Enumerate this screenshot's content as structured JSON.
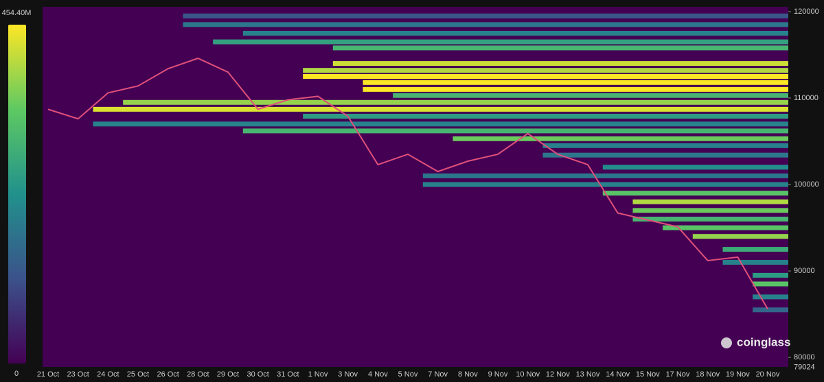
{
  "chart_data": {
    "type": "heatmap",
    "categories": [
      "21 Oct",
      "23 Oct",
      "24 Oct",
      "25 Oct",
      "26 Oct",
      "28 Oct",
      "29 Oct",
      "30 Oct",
      "31 Oct",
      "1 Nov",
      "3 Nov",
      "4 Nov",
      "5 Nov",
      "7 Nov",
      "8 Nov",
      "9 Nov",
      "10 Nov",
      "12 Nov",
      "13 Nov",
      "14 Nov",
      "15 Nov",
      "17 Nov",
      "18 Nov",
      "19 Nov",
      "20 Nov"
    ],
    "price": {
      "name": "price",
      "color": "#e0507a",
      "values": [
        108700,
        107600,
        110600,
        111400,
        113400,
        114600,
        113000,
        108700,
        109800,
        110200,
        107900,
        102300,
        103500,
        101500,
        102700,
        103500,
        105900,
        103500,
        102300,
        96700,
        95900,
        95100,
        91200,
        91600,
        85600
      ]
    },
    "last_price": 79024,
    "ylim": [
      78900,
      120550
    ],
    "yticks": [
      80000,
      90000,
      100000,
      110000,
      120000
    ],
    "colorscale": [
      "#440154",
      "#3b528b",
      "#21918c",
      "#5ec962",
      "#fde725"
    ],
    "clim": [
      0,
      454.4
    ],
    "colorbar_ticks": [
      0,
      {
        "value": 454.4,
        "label": "454.40M"
      }
    ],
    "bands": [
      {
        "price": 119500,
        "start": 5,
        "value": 120
      },
      {
        "price": 118500,
        "start": 5,
        "value": 180
      },
      {
        "price": 117500,
        "start": 7,
        "value": 200
      },
      {
        "price": 116500,
        "start": 6,
        "value": 260
      },
      {
        "price": 115800,
        "start": 10,
        "value": 300
      },
      {
        "price": 114000,
        "start": 10,
        "value": 420
      },
      {
        "price": 113200,
        "start": 9,
        "value": 400
      },
      {
        "price": 112500,
        "start": 9,
        "value": 454
      },
      {
        "price": 111800,
        "start": 11,
        "value": 454
      },
      {
        "price": 111000,
        "start": 11,
        "value": 454
      },
      {
        "price": 110300,
        "start": 12,
        "value": 300
      },
      {
        "price": 109500,
        "start": 3,
        "value": 380
      },
      {
        "price": 108700,
        "start": 2,
        "value": 430
      },
      {
        "price": 107900,
        "start": 9,
        "value": 250
      },
      {
        "price": 107000,
        "start": 2,
        "value": 200
      },
      {
        "price": 106200,
        "start": 7,
        "value": 300
      },
      {
        "price": 105300,
        "start": 14,
        "value": 350
      },
      {
        "price": 104500,
        "start": 17,
        "value": 200
      },
      {
        "price": 103400,
        "start": 17,
        "value": 180
      },
      {
        "price": 102000,
        "start": 19,
        "value": 220
      },
      {
        "price": 101000,
        "start": 13,
        "value": 180
      },
      {
        "price": 100000,
        "start": 13,
        "value": 200
      },
      {
        "price": 99000,
        "start": 19,
        "value": 330
      },
      {
        "price": 98000,
        "start": 20,
        "value": 400
      },
      {
        "price": 97000,
        "start": 20,
        "value": 350
      },
      {
        "price": 96000,
        "start": 20,
        "value": 300
      },
      {
        "price": 95000,
        "start": 21,
        "value": 330
      },
      {
        "price": 94000,
        "start": 22,
        "value": 380
      },
      {
        "price": 92500,
        "start": 23,
        "value": 280
      },
      {
        "price": 91000,
        "start": 23,
        "value": 200
      },
      {
        "price": 89500,
        "start": 24,
        "value": 250
      },
      {
        "price": 88500,
        "start": 24,
        "value": 330
      },
      {
        "price": 87000,
        "start": 24,
        "value": 200
      },
      {
        "price": 85500,
        "start": 24,
        "value": 150
      }
    ],
    "watermark": "coinglass"
  }
}
